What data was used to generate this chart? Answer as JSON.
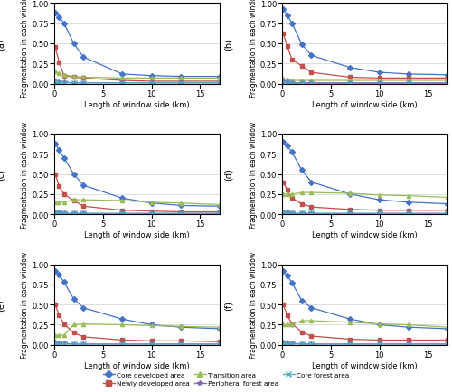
{
  "x": [
    0.1,
    0.5,
    1.0,
    2.0,
    3.0,
    7.0,
    10.0,
    13.0,
    17.0
  ],
  "panels": [
    {
      "label": "(a)",
      "core_developed": [
        0.88,
        0.83,
        0.75,
        0.5,
        0.33,
        0.12,
        0.1,
        0.09,
        0.09
      ],
      "newly_developed": [
        0.45,
        0.27,
        0.1,
        0.08,
        0.07,
        0.04,
        0.03,
        0.03,
        0.03
      ],
      "transition": [
        0.15,
        0.13,
        0.11,
        0.09,
        0.08,
        0.07,
        0.07,
        0.07,
        0.07
      ],
      "peripheral_forest": [
        0.03,
        0.02,
        0.02,
        0.01,
        0.01,
        0.01,
        0.01,
        0.01,
        0.01
      ],
      "core_forest": [
        0.02,
        0.01,
        0.01,
        0.01,
        0.01,
        0.01,
        0.01,
        0.01,
        0.01
      ]
    },
    {
      "label": "(b)",
      "core_developed": [
        0.93,
        0.85,
        0.75,
        0.49,
        0.35,
        0.2,
        0.14,
        0.12,
        0.11
      ],
      "newly_developed": [
        0.62,
        0.47,
        0.3,
        0.22,
        0.14,
        0.08,
        0.07,
        0.07,
        0.07
      ],
      "transition": [
        0.06,
        0.05,
        0.04,
        0.04,
        0.04,
        0.04,
        0.04,
        0.04,
        0.04
      ],
      "peripheral_forest": [
        0.03,
        0.02,
        0.01,
        0.01,
        0.01,
        0.01,
        0.01,
        0.01,
        0.01
      ],
      "core_forest": [
        0.01,
        0.01,
        0.01,
        0.01,
        0.01,
        0.01,
        0.01,
        0.01,
        0.01
      ]
    },
    {
      "label": "(c)",
      "core_developed": [
        0.88,
        0.8,
        0.7,
        0.5,
        0.36,
        0.2,
        0.14,
        0.11,
        0.1
      ],
      "newly_developed": [
        0.5,
        0.35,
        0.25,
        0.17,
        0.1,
        0.05,
        0.04,
        0.03,
        0.03
      ],
      "transition": [
        0.15,
        0.15,
        0.15,
        0.18,
        0.18,
        0.17,
        0.15,
        0.14,
        0.12
      ],
      "peripheral_forest": [
        0.03,
        0.02,
        0.01,
        0.01,
        0.01,
        0.01,
        0.01,
        0.01,
        0.01
      ],
      "core_forest": [
        0.02,
        0.01,
        0.01,
        0.01,
        0.01,
        0.01,
        0.01,
        0.01,
        0.01
      ]
    },
    {
      "label": "(d)",
      "core_developed": [
        0.9,
        0.85,
        0.77,
        0.55,
        0.4,
        0.25,
        0.18,
        0.15,
        0.13
      ],
      "newly_developed": [
        0.4,
        0.3,
        0.2,
        0.13,
        0.09,
        0.06,
        0.05,
        0.05,
        0.05
      ],
      "transition": [
        0.25,
        0.25,
        0.25,
        0.27,
        0.27,
        0.26,
        0.24,
        0.23,
        0.21
      ],
      "peripheral_forest": [
        0.03,
        0.02,
        0.01,
        0.01,
        0.01,
        0.01,
        0.01,
        0.01,
        0.01
      ],
      "core_forest": [
        0.02,
        0.01,
        0.01,
        0.01,
        0.01,
        0.01,
        0.01,
        0.01,
        0.01
      ]
    },
    {
      "label": "(e)",
      "core_developed": [
        0.92,
        0.87,
        0.78,
        0.57,
        0.46,
        0.32,
        0.25,
        0.22,
        0.2
      ],
      "newly_developed": [
        0.5,
        0.37,
        0.26,
        0.15,
        0.1,
        0.06,
        0.05,
        0.05,
        0.04
      ],
      "transition": [
        0.12,
        0.12,
        0.12,
        0.25,
        0.26,
        0.25,
        0.24,
        0.23,
        0.22
      ],
      "peripheral_forest": [
        0.03,
        0.02,
        0.02,
        0.01,
        0.01,
        0.01,
        0.01,
        0.01,
        0.01
      ],
      "core_forest": [
        0.02,
        0.01,
        0.01,
        0.01,
        0.01,
        0.01,
        0.01,
        0.01,
        0.01
      ]
    },
    {
      "label": "(f)",
      "core_developed": [
        0.92,
        0.86,
        0.77,
        0.55,
        0.46,
        0.32,
        0.25,
        0.22,
        0.2
      ],
      "newly_developed": [
        0.5,
        0.37,
        0.26,
        0.16,
        0.11,
        0.07,
        0.06,
        0.06,
        0.06
      ],
      "transition": [
        0.25,
        0.25,
        0.26,
        0.3,
        0.3,
        0.28,
        0.26,
        0.25,
        0.22
      ],
      "peripheral_forest": [
        0.03,
        0.02,
        0.02,
        0.01,
        0.01,
        0.01,
        0.01,
        0.01,
        0.01
      ],
      "core_forest": [
        0.02,
        0.01,
        0.01,
        0.01,
        0.01,
        0.01,
        0.01,
        0.01,
        0.01
      ]
    }
  ],
  "colors": {
    "core_developed": "#4472c4",
    "newly_developed": "#c0504d",
    "transition": "#9bbb59",
    "peripheral_forest": "#7f6ab2",
    "core_forest": "#4bacc6"
  },
  "markers": {
    "core_developed": "D",
    "newly_developed": "s",
    "transition": "^",
    "peripheral_forest": "*",
    "core_forest": "x"
  },
  "markersizes": {
    "core_developed": 3,
    "newly_developed": 3,
    "transition": 3,
    "peripheral_forest": 4,
    "core_forest": 4
  },
  "legend_order": [
    "core_developed",
    "newly_developed",
    "transition",
    "peripheral_forest",
    "core_forest"
  ],
  "legend_labels": {
    "core_developed": "Core developed area",
    "newly_developed": "Newly developed area",
    "transition": "Transition area",
    "peripheral_forest": "Peripheral forest area",
    "core_forest": "Core forest area"
  },
  "xlabel": "Length of window side (km)",
  "ylabel": "Fragmentation in each window",
  "xlim": [
    0,
    17
  ],
  "ylim": [
    0,
    1
  ],
  "yticks": [
    0,
    0.25,
    0.5,
    0.75,
    1
  ],
  "xticks": [
    0,
    5,
    10,
    15
  ]
}
